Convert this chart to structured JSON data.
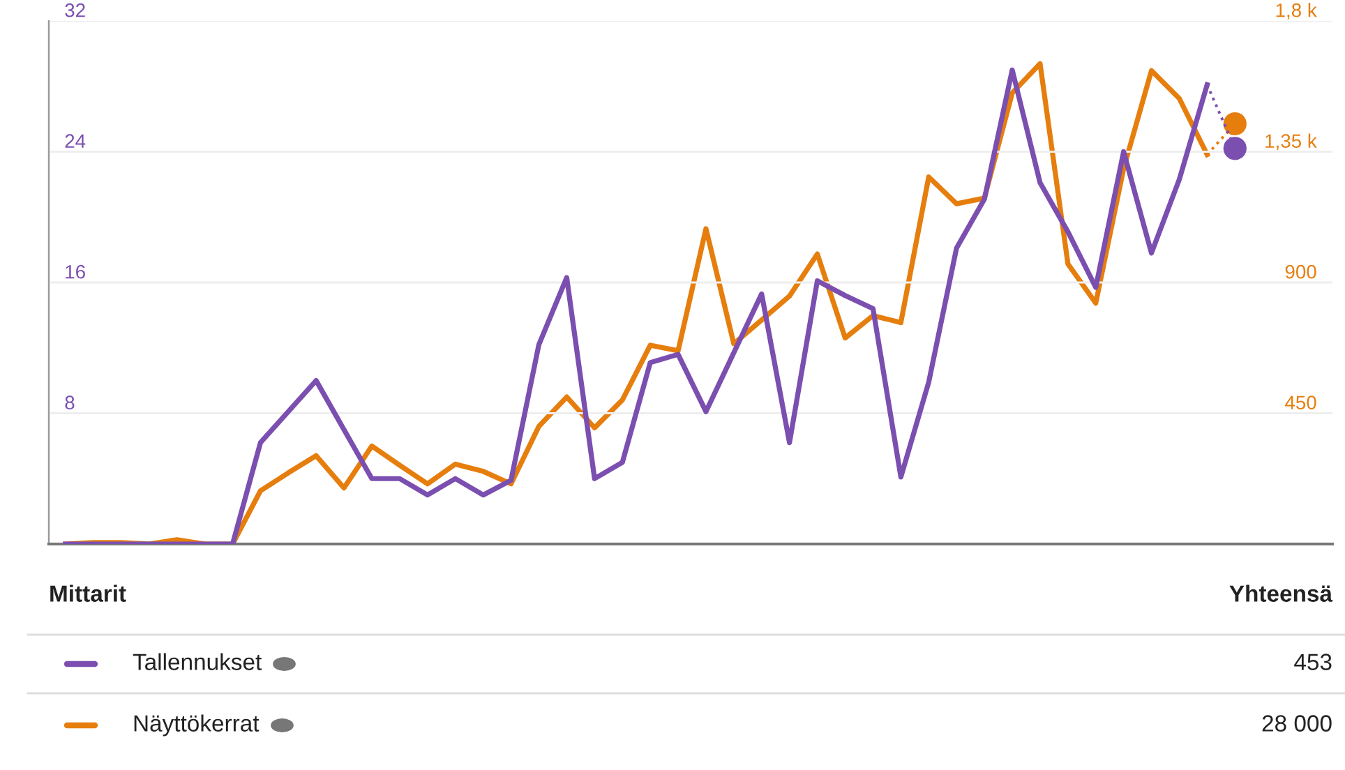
{
  "chart_data": {
    "type": "line",
    "categories": [
      null,
      null,
      null,
      null,
      null,
      null,
      null,
      null,
      null,
      null,
      null,
      null,
      null,
      null,
      null,
      null,
      null,
      null,
      null,
      null,
      null,
      null,
      null,
      null,
      null,
      null,
      null,
      null,
      null,
      null,
      null,
      null,
      null,
      null,
      null,
      null,
      null,
      null,
      null,
      null,
      null,
      null,
      null
    ],
    "series": [
      {
        "name": "Tallennukset",
        "color": "#7b4fb0",
        "values": [
          0,
          0,
          0,
          0,
          0,
          0,
          0,
          6.2,
          8.1,
          10,
          7,
          4,
          4,
          3,
          4,
          3,
          3.9,
          12.2,
          16.3,
          4,
          5,
          11.1,
          11.6,
          8.1,
          11.7,
          15.3,
          6.2,
          16.1,
          15.2,
          14.4,
          4.1,
          9.9,
          18.1,
          21.1,
          29,
          22.1,
          19.1,
          15.7,
          24,
          17.8,
          22.3,
          28.1,
          null
        ]
      },
      {
        "name": "Näyttökerrat",
        "color": "#e67e0e",
        "axis": "y2",
        "values": [
          0,
          5,
          5,
          0,
          15,
          0,
          0,
          183,
          245,
          304,
          193,
          337,
          271,
          207,
          275,
          250,
          207,
          405,
          506,
          400,
          496,
          684,
          665,
          1085,
          689,
          771,
          853,
          998,
          709,
          786,
          762,
          1263,
          1171,
          1190,
          1552,
          1653,
          964,
          829,
          1292,
          1629,
          1533,
          1340,
          null
        ]
      },
      {
        "color": "#7b4fb0",
        "line_style": "dotted",
        "values": [
          null,
          null,
          null,
          null,
          null,
          null,
          null,
          null,
          null,
          null,
          null,
          null,
          null,
          null,
          null,
          null,
          null,
          null,
          null,
          null,
          null,
          null,
          null,
          null,
          null,
          null,
          null,
          null,
          null,
          null,
          null,
          null,
          null,
          null,
          null,
          null,
          null,
          null,
          null,
          null,
          null,
          28.1,
          24.2
        ]
      },
      {
        "color": "#e67e0e",
        "axis": "y2",
        "line_style": "dotted",
        "values": [
          null,
          null,
          null,
          null,
          null,
          null,
          null,
          null,
          null,
          null,
          null,
          null,
          null,
          null,
          null,
          null,
          null,
          null,
          null,
          null,
          null,
          null,
          null,
          null,
          null,
          null,
          null,
          null,
          null,
          null,
          null,
          null,
          null,
          null,
          null,
          null,
          null,
          null,
          null,
          null,
          null,
          1340,
          1446
        ]
      },
      {
        "type": "scatter",
        "color": "#7b4fb0",
        "marker": "circle",
        "values": [
          null,
          null,
          null,
          null,
          null,
          null,
          null,
          null,
          null,
          null,
          null,
          null,
          null,
          null,
          null,
          null,
          null,
          null,
          null,
          null,
          null,
          null,
          null,
          null,
          null,
          null,
          null,
          null,
          null,
          null,
          null,
          null,
          null,
          null,
          null,
          null,
          null,
          null,
          null,
          null,
          null,
          null,
          24.2
        ]
      },
      {
        "type": "scatter",
        "color": "#e67e0e",
        "axis": "y2",
        "marker": "circle",
        "values": [
          null,
          null,
          null,
          null,
          null,
          null,
          null,
          null,
          null,
          null,
          null,
          null,
          null,
          null,
          null,
          null,
          null,
          null,
          null,
          null,
          null,
          null,
          null,
          null,
          null,
          null,
          null,
          null,
          null,
          null,
          null,
          null,
          null,
          null,
          null,
          null,
          null,
          null,
          null,
          null,
          null,
          null,
          1446
        ]
      }
    ],
    "ylim": [
      0,
      32
    ],
    "yticks": [
      8,
      16,
      24,
      32
    ],
    "y2lim": [
      0,
      1800
    ],
    "y2ticks": [
      450,
      900,
      {
        "value": 1350,
        "label": "1,35 k"
      },
      {
        "value": 1800,
        "label": "1,8 k"
      }
    ],
    "tick_labels": "y",
    "grid": "y",
    "legend": "bottom",
    "annotations": [
      "Mittarit",
      "Yhteensä",
      "453",
      "28 000"
    ]
  }
}
